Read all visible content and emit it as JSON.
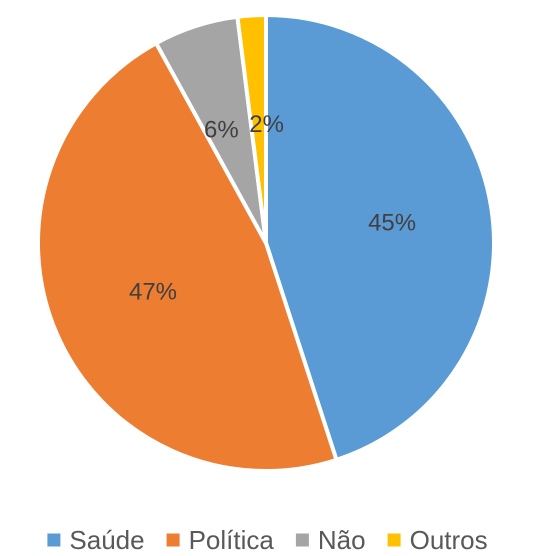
{
  "chart_data": {
    "type": "pie",
    "categories": [
      "Saúde",
      "Política",
      "Não",
      "Outros"
    ],
    "values": [
      45,
      47,
      6,
      2
    ],
    "labels": [
      "45%",
      "47%",
      "6%",
      "2%"
    ],
    "colors": [
      "#5B9BD5",
      "#ED7D31",
      "#A5A5A5",
      "#FFC000"
    ],
    "legend_position": "bottom",
    "start": "12 o'clock",
    "direction": "clockwise"
  }
}
